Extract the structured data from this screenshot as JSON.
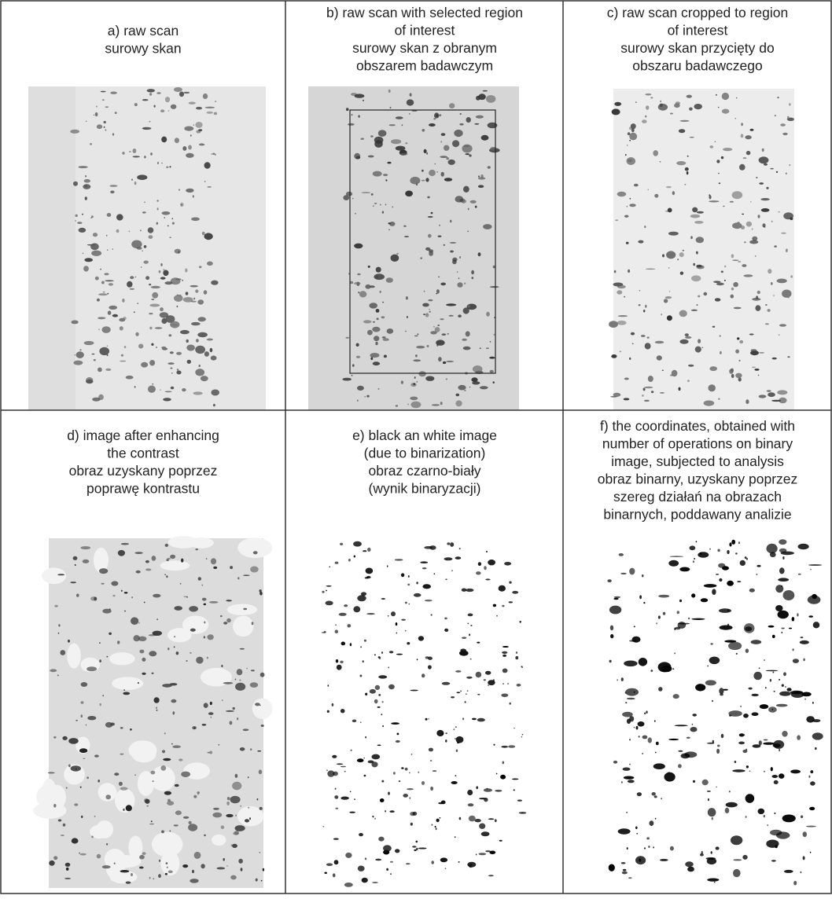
{
  "panels": [
    {
      "caption": [
        "a) raw scan",
        "surowy skan"
      ]
    },
    {
      "caption": [
        "b) raw scan with selected region",
        "of interest",
        "surowy skan z obranym",
        "obszarem badawczym"
      ]
    },
    {
      "caption": [
        "c) raw scan cropped to region",
        "of interest",
        "surowy skan przycięty do",
        "obszaru badawczego"
      ]
    },
    {
      "caption": [
        "d) image after enhancing",
        "the contrast",
        "obraz uzyskany poprzez",
        "poprawę kontrastu"
      ]
    },
    {
      "caption": [
        "e) black an white image",
        "(due to binarization)",
        "obraz czarno-biały",
        "(wynik binaryzacji)"
      ]
    },
    {
      "caption": [
        "f) the coordinates, obtained with",
        "number of operations on binary",
        "image, subjected to analysis",
        "obraz binarny, uzyskany poprzez",
        "szereg działań na obrazach",
        "binarnych, poddawany analizie"
      ]
    }
  ]
}
